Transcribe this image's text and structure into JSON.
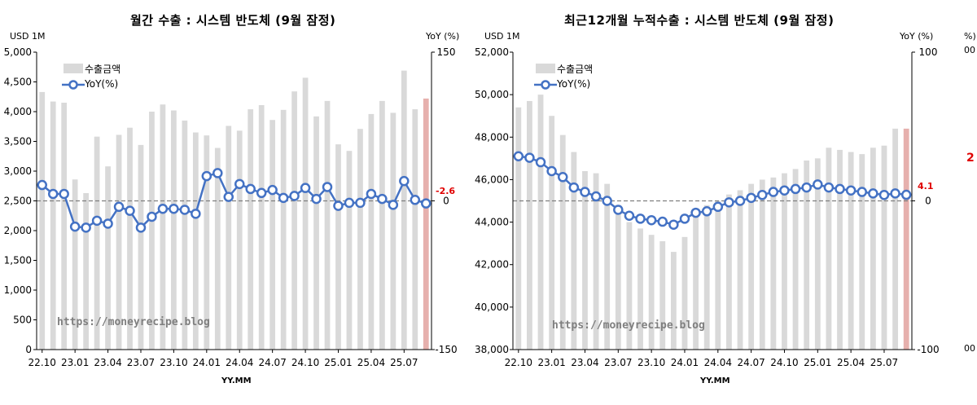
{
  "watermark": "https://moneyrecipe.blog",
  "colors": {
    "bar": "#d9d9d9",
    "bar_last": "#e6b0ad",
    "line": "#4472c4",
    "ref_line": "#808080",
    "label_red": "#e00000"
  },
  "chart_data": [
    {
      "type": "bar",
      "title": "월간 수출 : 시스템 반도체 (9월 잠정)",
      "ylabel_left": "USD 1M",
      "ylabel_right": "YoY (%)",
      "xlabel": "YY.MM",
      "ylim": [
        0,
        5000
      ],
      "y2lim": [
        -150,
        150
      ],
      "yticks": [
        0,
        500,
        1000,
        1500,
        2000,
        2500,
        3000,
        3500,
        4000,
        4500,
        5000
      ],
      "y2ticks": [
        -150,
        0,
        150
      ],
      "categories": [
        "22.10",
        "22.11",
        "22.12",
        "23.01",
        "23.02",
        "23.03",
        "23.04",
        "23.05",
        "23.06",
        "23.07",
        "23.08",
        "23.09",
        "23.10",
        "23.11",
        "23.12",
        "24.01",
        "24.02",
        "24.03",
        "24.04",
        "24.05",
        "24.06",
        "24.07",
        "24.08",
        "24.09",
        "24.10",
        "24.11",
        "24.12",
        "25.01",
        "25.02",
        "25.03",
        "25.04",
        "25.05",
        "25.06",
        "25.07",
        "25.08",
        "25.09"
      ],
      "xtick_labels": [
        "22.10",
        "23.01",
        "23.04",
        "23.07",
        "23.10",
        "24.01",
        "24.04",
        "24.07",
        "24.10",
        "25.01",
        "25.04",
        "25.07"
      ],
      "legend": [
        "수출금액",
        "YoY(%)"
      ],
      "series": [
        {
          "name": "수출금액",
          "values": [
            4330,
            4170,
            4150,
            2860,
            2630,
            3580,
            3080,
            3610,
            3730,
            3440,
            4000,
            4120,
            4020,
            3850,
            3650,
            3600,
            3390,
            3760,
            3680,
            4040,
            4110,
            3860,
            4030,
            4340,
            4570,
            3920,
            4180,
            3450,
            3340,
            3710,
            3960,
            4180,
            3980,
            4690,
            4040,
            4220
          ]
        },
        {
          "name": "YoY(%)",
          "values": [
            16,
            7,
            7,
            -26,
            -27,
            -20,
            -23,
            -6,
            -10,
            -27,
            -16,
            -8,
            -8,
            -9,
            -13,
            25,
            28,
            4,
            17,
            12,
            8,
            11,
            3,
            5,
            13,
            2,
            14,
            -5,
            -2,
            -2,
            7,
            2,
            -4,
            20,
            1,
            -2.6
          ]
        }
      ],
      "last_value_label": "-2.6"
    },
    {
      "type": "bar",
      "title": "최근12개월 누적수출 : 시스템 반도체 (9월 잠정)",
      "ylabel_left": "USD 1M",
      "ylabel_right": "YoY (%)",
      "xlabel": "YY.MM",
      "ylim": [
        38000,
        52000
      ],
      "y2lim": [
        -100,
        100
      ],
      "yticks": [
        38000,
        40000,
        42000,
        44000,
        46000,
        48000,
        50000,
        52000
      ],
      "y2ticks": [
        -100,
        0,
        100
      ],
      "categories": [
        "22.10",
        "22.11",
        "22.12",
        "23.01",
        "23.02",
        "23.03",
        "23.04",
        "23.05",
        "23.06",
        "23.07",
        "23.08",
        "23.09",
        "23.10",
        "23.11",
        "23.12",
        "24.01",
        "24.02",
        "24.03",
        "24.04",
        "24.05",
        "24.06",
        "24.07",
        "24.08",
        "24.09",
        "24.10",
        "24.11",
        "24.12",
        "25.01",
        "25.02",
        "25.03",
        "25.04",
        "25.05",
        "25.06",
        "25.07",
        "25.08",
        "25.09"
      ],
      "xtick_labels": [
        "22.10",
        "23.01",
        "23.04",
        "23.07",
        "23.10",
        "24.01",
        "24.04",
        "24.07",
        "24.10",
        "25.01",
        "25.04",
        "25.07"
      ],
      "legend": [
        "수출금액",
        "YoY(%)"
      ],
      "series": [
        {
          "name": "수출금액",
          "values": [
            49400,
            49700,
            50000,
            49000,
            48100,
            47300,
            46400,
            46300,
            45800,
            44800,
            44000,
            43700,
            43400,
            43100,
            42600,
            43300,
            44600,
            44800,
            45000,
            45300,
            45500,
            45800,
            46000,
            46100,
            46300,
            46500,
            46900,
            47000,
            47500,
            47400,
            47300,
            47200,
            47500,
            47600,
            48400,
            48400
          ]
        },
        {
          "name": "YoY(%)",
          "values": [
            30,
            29,
            26,
            20,
            16,
            9,
            6,
            3,
            0,
            -6,
            -10,
            -12,
            -13,
            -14,
            -16,
            -12,
            -8,
            -7,
            -4,
            -1,
            0,
            2,
            4,
            6,
            7,
            8,
            9,
            11,
            9,
            8,
            7,
            6,
            5,
            4,
            5,
            4.1
          ]
        }
      ],
      "last_value_label": "4.1",
      "clipped_right_labels": [
        "00",
        "%)",
        "00",
        "2"
      ]
    }
  ]
}
